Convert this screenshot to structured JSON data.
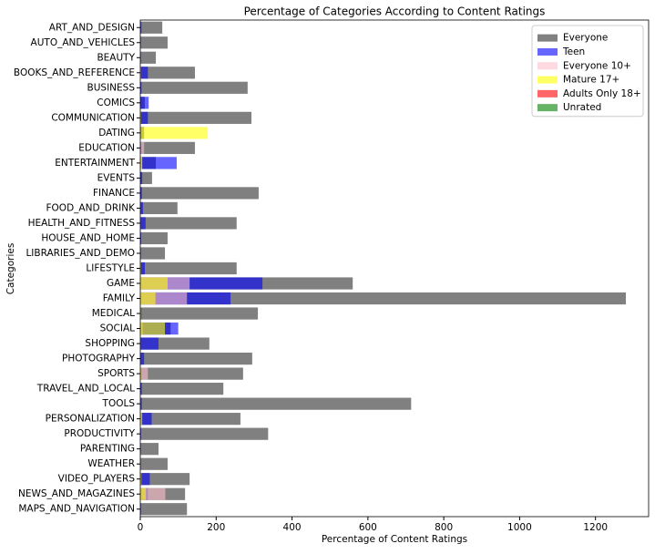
{
  "chart_data": {
    "type": "barh-overlay",
    "title": "Percentage of Categories According to Content Ratings",
    "xlabel": "Percentage of Content Ratings",
    "ylabel": "Categories",
    "categories": [
      "ART_AND_DESIGN",
      "AUTO_AND_VEHICLES",
      "BEAUTY",
      "BOOKS_AND_REFERENCE",
      "BUSINESS",
      "COMICS",
      "COMMUNICATION",
      "DATING",
      "EDUCATION",
      "ENTERTAINMENT",
      "EVENTS",
      "FINANCE",
      "FOOD_AND_DRINK",
      "HEALTH_AND_FITNESS",
      "HOUSE_AND_HOME",
      "LIBRARIES_AND_DEMO",
      "LIFESTYLE",
      "GAME",
      "FAMILY",
      "MEDICAL",
      "SOCIAL",
      "SHOPPING",
      "PHOTOGRAPHY",
      "SPORTS",
      "TRAVEL_AND_LOCAL",
      "TOOLS",
      "PERSONALIZATION",
      "PRODUCTIVITY",
      "PARENTING",
      "WEATHER",
      "VIDEO_PLAYERS",
      "NEWS_AND_MAGAZINES",
      "MAPS_AND_NAVIGATION"
    ],
    "series": [
      {
        "name": "Everyone",
        "color": "#808080",
        "opacity": 1,
        "values": [
          58,
          72,
          41,
          144,
          283,
          12,
          293,
          10,
          144,
          41,
          31,
          312,
          98,
          254,
          72,
          65,
          254,
          560,
          1280,
          310,
          80,
          182,
          295,
          271,
          219,
          714,
          264,
          337,
          48,
          72,
          130,
          118,
          123
        ]
      },
      {
        "name": "Teen",
        "color": "#0000ff",
        "opacity": 0.6,
        "values": [
          3,
          1,
          1,
          20,
          3,
          22,
          20,
          3,
          3,
          96,
          5,
          4,
          7,
          14,
          2,
          1,
          12,
          322,
          238,
          3,
          100,
          48,
          10,
          3,
          4,
          4,
          30,
          2,
          1,
          1,
          25,
          20,
          2
        ]
      },
      {
        "name": "Everyone 10+",
        "color": "#ffc0cb",
        "opacity": 0.6,
        "values": [
          1,
          0,
          0,
          2,
          1,
          0,
          1,
          1,
          10,
          5,
          0,
          0,
          0,
          1,
          0,
          0,
          1,
          130,
          123,
          1,
          6,
          1,
          1,
          20,
          1,
          1,
          3,
          1,
          0,
          1,
          1,
          66,
          1
        ]
      },
      {
        "name": "Mature 17+",
        "color": "#ffff00",
        "opacity": 0.6,
        "values": [
          1,
          0,
          0,
          1,
          0,
          0,
          2,
          178,
          1,
          5,
          0,
          0,
          1,
          1,
          0,
          0,
          2,
          72,
          40,
          2,
          65,
          1,
          1,
          2,
          0,
          1,
          5,
          0,
          0,
          0,
          3,
          15,
          1
        ]
      },
      {
        "name": "Adults Only 18+",
        "color": "#ff0000",
        "opacity": 0.6,
        "values": [
          0,
          0,
          0,
          0,
          0,
          0,
          0,
          0,
          0,
          0,
          0,
          0,
          0,
          0,
          0,
          0,
          0,
          0,
          0,
          0,
          0,
          0,
          0,
          0,
          0,
          0,
          0,
          0,
          0,
          0,
          0,
          0,
          0
        ]
      },
      {
        "name": "Unrated",
        "color": "#008000",
        "opacity": 0.6,
        "values": [
          0,
          0,
          0,
          0,
          0,
          0,
          0,
          0,
          0,
          0,
          0,
          0,
          0,
          0,
          0,
          0,
          0,
          0,
          0,
          0,
          0,
          0,
          0,
          0,
          0,
          0,
          0,
          0,
          0,
          0,
          0,
          0,
          0
        ]
      }
    ],
    "xlim": [
      0,
      1340
    ],
    "xticks": [
      0,
      200,
      400,
      600,
      800,
      1000,
      1200
    ],
    "legend": "upper-right"
  }
}
